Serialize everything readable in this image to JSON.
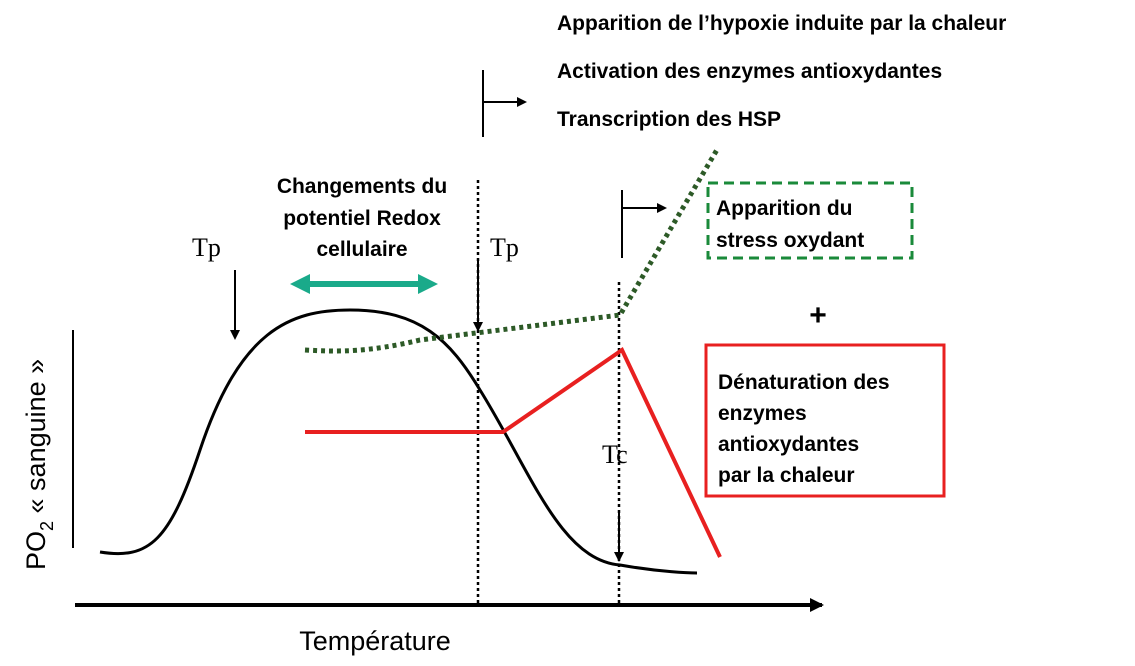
{
  "header_lines": [
    "Apparition de l’hypoxie induite par la chaleur",
    "Activation des enzymes antioxydantes",
    "Transcription des HSP"
  ],
  "redox_label": [
    "Changements du",
    "potentiel Redox",
    "cellulaire"
  ],
  "tp_left": "Tp",
  "tp_right": "Tp",
  "tc": "Tc",
  "stress_box": [
    "Apparition du",
    "stress oxydant"
  ],
  "plus": "+",
  "denaturation_box": [
    "Dénaturation des",
    "enzymes",
    "antioxydantes",
    "par la chaleur"
  ],
  "y_label": {
    "main": "PO",
    "subscript": "2",
    "rest": " « sanguine »"
  },
  "x_label": "Température"
}
